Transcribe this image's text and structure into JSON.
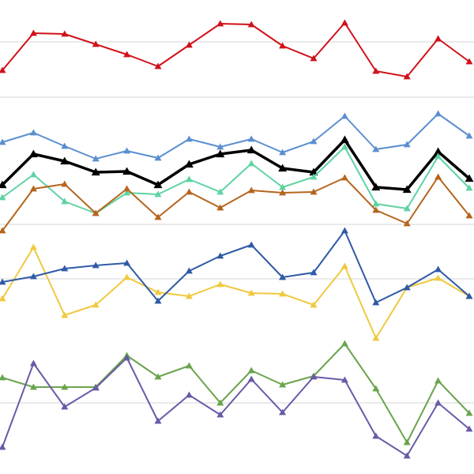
{
  "chart_data": {
    "type": "line",
    "title": "",
    "xlabel": "",
    "ylabel": "",
    "grid": true,
    "legend": "none",
    "marker": "triangle",
    "x": [
      0,
      1,
      2,
      3,
      4,
      5,
      6,
      7,
      8,
      9,
      10,
      11,
      12,
      13,
      14,
      15
    ],
    "ylim": [
      0,
      600
    ],
    "gridlines": [
      90,
      247,
      316,
      477,
      547
    ],
    "series": [
      {
        "color": "#d0111b",
        "width": 2,
        "values": [
          511,
          558,
          557,
          544,
          531,
          516,
          543,
          570,
          569,
          542,
          526,
          571,
          510,
          503,
          551,
          522
        ]
      },
      {
        "color": "#5b8fd0",
        "width": 2,
        "values": [
          420,
          432,
          415,
          399,
          409,
          400,
          424,
          414,
          424,
          407,
          421,
          453,
          411,
          417,
          456,
          428
        ]
      },
      {
        "color": "#000000",
        "width": 3.5,
        "values": [
          366,
          405,
          396,
          382,
          383,
          366,
          392,
          405,
          410,
          387,
          382,
          423,
          363,
          360,
          408,
          374
        ]
      },
      {
        "color": "#5ed3a2",
        "width": 2,
        "values": [
          350,
          379,
          345,
          330,
          356,
          354,
          373,
          357,
          393,
          363,
          376,
          414,
          342,
          336,
          402,
          362
        ]
      },
      {
        "color": "#b5651d",
        "width": 2,
        "values": [
          308,
          361,
          367,
          330,
          361,
          325,
          357,
          337,
          359,
          356,
          357,
          375,
          334,
          317,
          376,
          327
        ]
      },
      {
        "color": "#f0c93f",
        "width": 2,
        "values": [
          222,
          287,
          201,
          214,
          249,
          230,
          225,
          240,
          229,
          228,
          214,
          263,
          172,
          236,
          248,
          225
        ]
      },
      {
        "color": "#2f5aa6",
        "width": 2,
        "values": [
          243,
          250,
          260,
          264,
          267,
          219,
          257,
          276,
          290,
          249,
          255,
          308,
          217,
          236,
          259,
          225
        ]
      },
      {
        "color": "#6aa44d",
        "width": 2,
        "values": [
          122,
          110,
          110,
          110,
          150,
          123,
          137,
          90,
          131,
          113,
          124,
          165,
          108,
          40,
          118,
          77
        ]
      },
      {
        "color": "#6a5aa8",
        "width": 2,
        "values": [
          34,
          140,
          85,
          109,
          147,
          67,
          100,
          75,
          120,
          78,
          123,
          119,
          48,
          23,
          90,
          57
        ]
      }
    ]
  }
}
